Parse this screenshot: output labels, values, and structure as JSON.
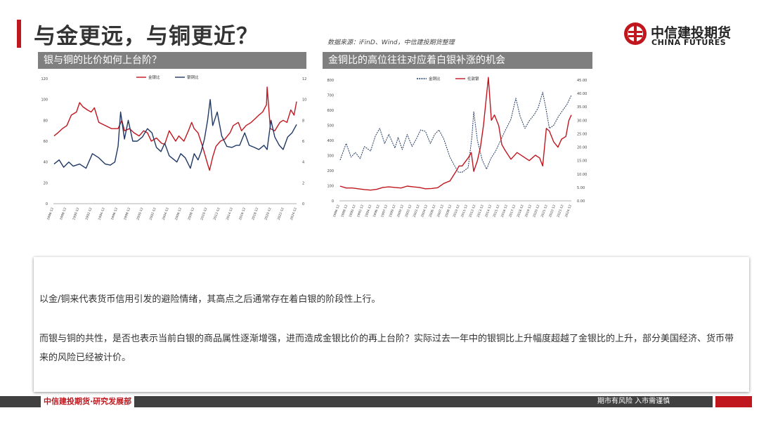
{
  "title": "与金更远，与铜更近？",
  "source": "数据来源：iFinD、Wind，中信建投期货整理",
  "logo": {
    "cn": "中信建投期货",
    "en": "CHINA FUTURES"
  },
  "colors": {
    "accent": "#c0161e",
    "series_red": "#c0161e",
    "series_navy": "#1f3864",
    "header_gray": "#7f7f7f"
  },
  "panels": {
    "left": {
      "header": "银与铜的比价如何上台阶？"
    },
    "right": {
      "header": "金铜比的高位往往对应着白银补涨的机会"
    }
  },
  "body": {
    "p1": "以金/铜来代表货币信用引发的避险情绪，其高点之后通常存在着白银的阶段性上行。",
    "p2": "而银与铜的共性，是否也表示当前白银的商品属性逐渐增强，进而造成金银比价的再上台阶？实际过去一年中的银铜比上升幅度超越了金银比的上升，部分美国经济、货币带来的风险已经被计价。"
  },
  "footer": {
    "left": "中信建投期货·研究发展部",
    "right": "期市有风险  入市需谨慎"
  },
  "chart_data": [
    {
      "type": "line",
      "title": "",
      "legend_placement": "top-center",
      "x_ticks": [
        "1986-12",
        "1988-12",
        "1990-12",
        "1992-12",
        "1994-12",
        "1996-12",
        "1998-12",
        "2000-12",
        "2002-12",
        "2004-12",
        "2006-12",
        "2008-12",
        "2010-12",
        "2012-12",
        "2014-12",
        "2016-12",
        "2018-12",
        "2020-12",
        "2022-12",
        "2024-12"
      ],
      "x_range": [
        1986.9,
        2024.9
      ],
      "y_left": {
        "ticks": [
          0,
          20,
          40,
          60,
          80,
          100,
          120
        ],
        "range": [
          0,
          120
        ]
      },
      "y_right": {
        "ticks": [
          0,
          2,
          4,
          6,
          8,
          10,
          12
        ],
        "range": [
          0,
          12
        ]
      },
      "series": [
        {
          "name": "金银比",
          "axis": "left",
          "color": "#c0161e",
          "x": [
            1987,
            1987.6,
            1988.3,
            1989,
            1989.7,
            1990.5,
            1991,
            1991.5,
            1992.2,
            1992.8,
            1993.3,
            1994,
            1995,
            1996,
            1997,
            1997.6,
            1998,
            1998.8,
            1999.5,
            2000.3,
            2001,
            2001.6,
            2002.2,
            2003,
            2003.8,
            2004.3,
            2005,
            2006,
            2006.5,
            2007.3,
            2008,
            2008.5,
            2008.9,
            2009.5,
            2010.2,
            2011,
            2011.3,
            2011.8,
            2012.3,
            2013,
            2013.7,
            2014.5,
            2015,
            2015.8,
            2016.3,
            2017,
            2017.8,
            2018.5,
            2019,
            2019.6,
            2020.2,
            2020.3,
            2020.8,
            2021.5,
            2022.3,
            2022.8,
            2023.4,
            2024,
            2024.5,
            2024.9
          ],
          "y": [
            65,
            68,
            72,
            75,
            85,
            88,
            97,
            93,
            90,
            88,
            92,
            78,
            75,
            72,
            72,
            80,
            70,
            72,
            68,
            65,
            70,
            68,
            60,
            63,
            58,
            57,
            70,
            60,
            65,
            60,
            70,
            78,
            72,
            68,
            55,
            38,
            32,
            45,
            55,
            60,
            62,
            68,
            75,
            78,
            70,
            75,
            78,
            82,
            85,
            88,
            95,
            112,
            72,
            70,
            78,
            80,
            78,
            90,
            85,
            98
          ]
        },
        {
          "name": "银铜比",
          "axis": "right",
          "color": "#1f3864",
          "x": [
            1987,
            1987.8,
            1988.5,
            1989.3,
            1990,
            1991,
            1992,
            1993,
            1994,
            1995,
            1995.8,
            1996.5,
            1997,
            1997.4,
            1998,
            1998.6,
            1999.3,
            2000,
            2000.8,
            2001.6,
            2002.3,
            2003,
            2003.7,
            2004.3,
            2005,
            2005.8,
            2006.2,
            2006.8,
            2007.5,
            2008.3,
            2008.9,
            2009.5,
            2010,
            2010.5,
            2011,
            2011.4,
            2011.8,
            2012.5,
            2013.2,
            2014,
            2014.8,
            2015.5,
            2016,
            2016.8,
            2017.5,
            2018.3,
            2019,
            2019.8,
            2020.3,
            2020.9,
            2021.5,
            2022.2,
            2022.8,
            2023.5,
            2024.2,
            2024.9
          ],
          "y": [
            3.8,
            4.2,
            3.5,
            4,
            3.6,
            3.8,
            3.4,
            4.8,
            4.4,
            3.8,
            3.7,
            4,
            5.5,
            8.8,
            6.2,
            8,
            6,
            6,
            6.4,
            7.2,
            6.8,
            5.4,
            5,
            5.8,
            4.6,
            4.2,
            4,
            4.8,
            4.4,
            3.4,
            4.8,
            4.2,
            5,
            6.2,
            8,
            10,
            7.5,
            8.8,
            6.5,
            5.5,
            5.4,
            5.6,
            5.6,
            6.8,
            5.6,
            5.4,
            5.2,
            5.6,
            5.2,
            8,
            6.4,
            5.6,
            5.2,
            6.4,
            6.8,
            7.6
          ]
        }
      ]
    },
    {
      "type": "line",
      "title": "",
      "legend_placement": "top-center",
      "x_ticks": [
        "1986-12",
        "1988-12",
        "1990-12",
        "1992-12",
        "1994-12",
        "1996-12",
        "1997-12",
        "1999-12",
        "2000-12",
        "2002-12",
        "2003-12",
        "2004-12",
        "2006-12",
        "2007-12",
        "2008-12",
        "2010-12",
        "2011-12",
        "2012-12",
        "2013-12",
        "2014-12",
        "2015-12",
        "2016-12",
        "2017-12",
        "2018-12",
        "2019-12",
        "2020-12",
        "2021-12",
        "2022-12",
        "2023-12",
        "2024-12"
      ],
      "x_range": [
        1986.9,
        2024.9
      ],
      "y_left": {
        "ticks": [
          0,
          100,
          200,
          300,
          400,
          500,
          600,
          700,
          800
        ],
        "range": [
          0,
          800
        ]
      },
      "y_right": {
        "ticks": [
          "0.00",
          "5.00",
          "10.00",
          "15.00",
          "20.00",
          "25.00",
          "30.00",
          "35.00",
          "40.00",
          "45.00"
        ],
        "range": [
          0,
          45
        ]
      },
      "series": [
        {
          "name": "金铜比",
          "axis": "left",
          "color": "#1f3864",
          "dash": true,
          "x": [
            1987,
            1988,
            1988.8,
            1989.5,
            1990.3,
            1991,
            1992,
            1992.8,
            1993.5,
            1994.3,
            1995,
            1996,
            1996.5,
            1997.2,
            1998,
            1998.8,
            1999.5,
            2000.2,
            2001,
            2001.8,
            2002.5,
            2003.2,
            2004,
            2005,
            2005.8,
            2006.4,
            2007,
            2008,
            2008.6,
            2008.9,
            2009.5,
            2010.3,
            2011,
            2011.7,
            2012.5,
            2013.3,
            2014,
            2015,
            2015.8,
            2016.5,
            2017.3,
            2018,
            2018.8,
            2019.5,
            2020.2,
            2020.7,
            2021.3,
            2022,
            2022.8,
            2023.5,
            2024.2,
            2024.9
          ],
          "y": [
            270,
            380,
            290,
            320,
            280,
            360,
            330,
            430,
            480,
            380,
            440,
            350,
            420,
            340,
            440,
            360,
            410,
            470,
            460,
            380,
            440,
            470,
            410,
            290,
            230,
            190,
            190,
            220,
            420,
            590,
            400,
            270,
            210,
            280,
            330,
            400,
            460,
            540,
            680,
            560,
            480,
            530,
            570,
            620,
            720,
            620,
            480,
            500,
            560,
            600,
            640,
            700
          ]
        },
        {
          "name": "伦敦银",
          "axis": "right",
          "color": "#c0161e",
          "x": [
            1987,
            1988,
            1989,
            1990,
            1991,
            1992,
            1993,
            1994,
            1995,
            1996,
            1997,
            1998,
            1999,
            2000,
            2001,
            2002,
            2003,
            2004,
            2005,
            2006,
            2006.5,
            2007,
            2008,
            2008.5,
            2008.9,
            2009.5,
            2010,
            2010.5,
            2011.3,
            2011.8,
            2012.3,
            2013,
            2013.5,
            2014,
            2015,
            2016,
            2017,
            2018,
            2019,
            2019.7,
            2020.2,
            2020.8,
            2021.3,
            2022,
            2022.7,
            2023.3,
            2024,
            2024.5,
            2024.9
          ],
          "y": [
            5.5,
            4.8,
            4.8,
            4.5,
            4.2,
            4,
            4.3,
            5,
            5.2,
            5,
            4.8,
            5.5,
            5.2,
            5,
            4.5,
            4.6,
            4.9,
            6.5,
            7.4,
            11,
            13,
            13,
            16,
            18,
            11,
            15,
            20,
            28,
            46,
            30,
            32,
            28,
            21,
            19,
            15.5,
            18,
            16.5,
            15,
            17,
            16,
            13,
            27,
            26,
            22,
            20,
            23,
            24,
            30,
            32
          ]
        }
      ]
    }
  ]
}
